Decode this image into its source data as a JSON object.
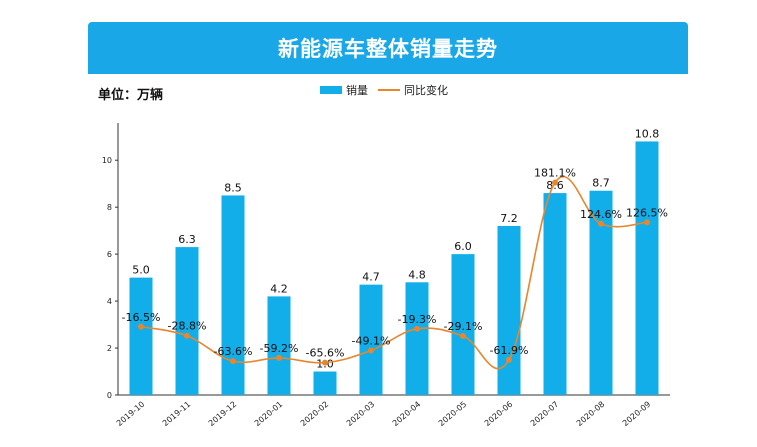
{
  "header": {
    "title": "新能源车整体销量走势"
  },
  "unit": "单位：万辆",
  "colors": {
    "bar": "#12aeea",
    "line": "#e8862e",
    "title_bg": "#1aa7e8"
  },
  "chart_data": {
    "type": "bar",
    "title": "新能源车整体销量走势",
    "categories": [
      "2019-10",
      "2019-11",
      "2019-12",
      "2020-01",
      "2020-02",
      "2020-03",
      "2020-04",
      "2020-05",
      "2020-06",
      "2020-07",
      "2020-08",
      "2020-09"
    ],
    "series": [
      {
        "name": "销量",
        "type": "bar",
        "values": [
          5.0,
          6.3,
          8.5,
          4.2,
          1.0,
          4.7,
          4.8,
          6.0,
          7.2,
          8.6,
          8.7,
          10.8
        ],
        "labels": [
          "5.0",
          "6.3",
          "8.5",
          "4.2",
          "1.0",
          "4.7",
          "4.8",
          "6.0",
          "7.2",
          "8.6",
          "8.7",
          "10.8"
        ]
      },
      {
        "name": "同比变化",
        "type": "line",
        "values": [
          -16.5,
          -28.8,
          -63.6,
          -59.2,
          -65.6,
          -49.1,
          -19.3,
          -29.1,
          -61.9,
          181.1,
          124.6,
          126.5
        ],
        "labels": [
          "-16.5%",
          "-28.8%",
          "-63.6%",
          "-59.2%",
          "-65.6%",
          "-49.1%",
          "-19.3%",
          "-29.1%",
          "-61.9%",
          "181.1%",
          "124.6%",
          "126.5%"
        ]
      }
    ],
    "yticks": [
      "0",
      "2",
      "4",
      "6",
      "8",
      "10"
    ],
    "ylim": [
      0,
      11.5
    ],
    "legend_position": "top-center"
  }
}
